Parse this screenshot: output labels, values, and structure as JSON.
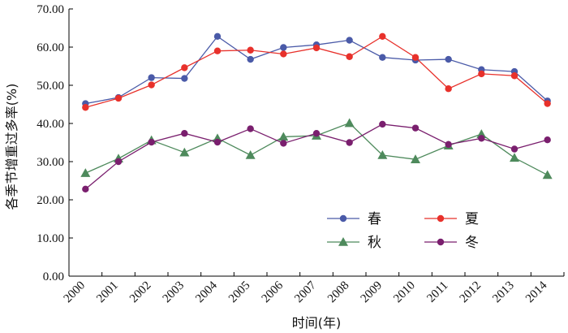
{
  "chart_data": {
    "type": "line",
    "xlabel": "时间(年)",
    "ylabel": "各季节增重过多率(%)",
    "x": [
      "2000",
      "2001",
      "2002",
      "2003",
      "2004",
      "2005",
      "2006",
      "2007",
      "2008",
      "2009",
      "2010",
      "2011",
      "2012",
      "2013",
      "2014"
    ],
    "ylim": [
      0,
      70
    ],
    "yticks": [
      "0.00",
      "10.00",
      "20.00",
      "30.00",
      "40.00",
      "50.00",
      "60.00",
      "70.00"
    ],
    "grid": false,
    "legend_position": "bottom-right",
    "series": [
      {
        "name": "春",
        "color": "#4a5aa8",
        "marker": "circle",
        "values": [
          45.2,
          46.8,
          52.0,
          51.8,
          62.8,
          56.8,
          59.9,
          60.6,
          61.8,
          57.3,
          56.6,
          56.8,
          54.1,
          53.6,
          45.9
        ]
      },
      {
        "name": "夏",
        "color": "#e8312b",
        "marker": "circle",
        "values": [
          44.2,
          46.6,
          50.1,
          54.6,
          59.0,
          59.2,
          58.2,
          59.8,
          57.5,
          62.8,
          57.3,
          49.1,
          53.0,
          52.5,
          45.2
        ]
      },
      {
        "name": "秋",
        "color": "#4e8a5c",
        "marker": "triangle",
        "values": [
          27.0,
          30.8,
          35.6,
          32.4,
          36.1,
          31.7,
          36.5,
          36.8,
          40.1,
          31.7,
          30.6,
          34.2,
          37.2,
          31.0,
          26.5
        ]
      },
      {
        "name": "冬",
        "color": "#7a1f6e",
        "marker": "circle",
        "values": [
          22.8,
          30.0,
          35.1,
          37.4,
          35.1,
          38.6,
          34.8,
          37.4,
          35.0,
          39.8,
          38.8,
          34.5,
          36.1,
          33.3,
          35.7
        ]
      }
    ]
  }
}
